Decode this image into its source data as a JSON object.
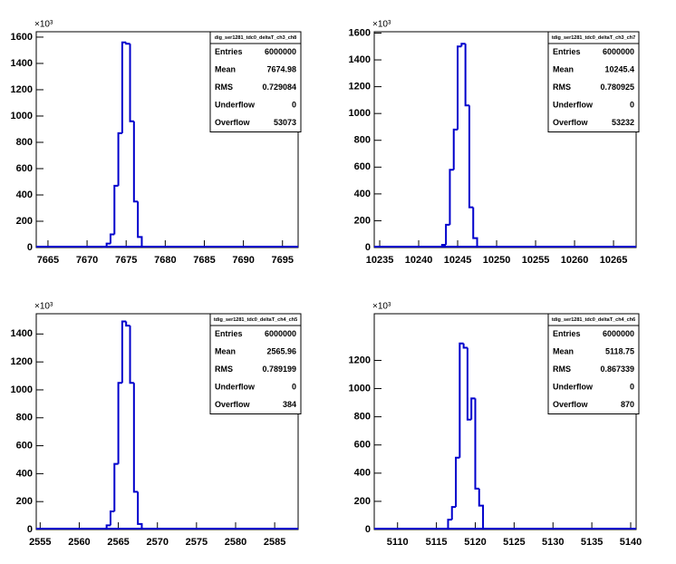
{
  "chart_data": [
    {
      "type": "histogram",
      "stats_title": "dig_ser1281_tdc0_deltaT_ch3_ch8",
      "y_multiplier": "×10³",
      "bins": [
        7672,
        7672.5,
        7673,
        7673.5,
        7674,
        7674.5,
        7675,
        7675.5,
        7676,
        7676.5,
        7677
      ],
      "values": [
        5,
        30,
        100,
        470,
        870,
        1560,
        1550,
        960,
        350,
        80
      ],
      "color": "#0000cc",
      "xlim": [
        7663.5,
        7697
      ],
      "ylim": [
        0,
        1641
      ],
      "xticks": [
        7665,
        7670,
        7675,
        7680,
        7685,
        7690,
        7695
      ],
      "yticks": [
        0,
        200,
        400,
        600,
        800,
        1000,
        1200,
        1400,
        1600
      ],
      "stats": {
        "labels": [
          "Entries",
          "Mean",
          "RMS",
          "Underflow",
          "Overflow"
        ],
        "values": [
          6000000,
          7674.98,
          0.729084,
          0,
          53073
        ]
      }
    },
    {
      "type": "histogram",
      "stats_title": "tdig_ser1281_tdc0_deltaT_ch3_ch7",
      "y_multiplier": "×10³",
      "bins": [
        10243,
        10243.5,
        10244,
        10244.5,
        10245,
        10245.5,
        10246,
        10246.5,
        10247,
        10247.5
      ],
      "values": [
        20,
        170,
        580,
        880,
        1500,
        1520,
        1060,
        300,
        70
      ],
      "color": "#0000cc",
      "xlim": [
        10234.3,
        10267.9
      ],
      "ylim": [
        0,
        1610
      ],
      "xticks": [
        10235,
        10240,
        10245,
        10250,
        10255,
        10260,
        10265
      ],
      "yticks": [
        0,
        200,
        400,
        600,
        800,
        1000,
        1200,
        1400,
        1600
      ],
      "stats": {
        "labels": [
          "Entries",
          "Mean",
          "RMS",
          "Underflow",
          "Overflow"
        ],
        "values": [
          6000000,
          10245.4,
          0.780925,
          0,
          53232
        ]
      }
    },
    {
      "type": "histogram",
      "stats_title": "tdig_ser1281_tdc0_deltaT_ch4_ch5",
      "y_multiplier": "×10³",
      "bins": [
        2563.5,
        2564,
        2564.5,
        2565,
        2565.5,
        2566,
        2566.5,
        2567,
        2567.5,
        2568
      ],
      "values": [
        30,
        130,
        470,
        1050,
        1490,
        1460,
        1050,
        270,
        40
      ],
      "color": "#0000cc",
      "xlim": [
        2554.5,
        2588
      ],
      "ylim": [
        0,
        1545
      ],
      "xticks": [
        2555,
        2560,
        2565,
        2570,
        2575,
        2580,
        2585
      ],
      "yticks": [
        0,
        200,
        400,
        600,
        800,
        1000,
        1200,
        1400
      ],
      "stats": {
        "labels": [
          "Entries",
          "Mean",
          "RMS",
          "Underflow",
          "Overflow"
        ],
        "values": [
          6000000,
          2565.96,
          0.789199,
          0,
          384
        ]
      }
    },
    {
      "type": "histogram",
      "stats_title": "tdig_ser1281_tdc0_deltaT_ch4_ch6",
      "y_multiplier": "×10³",
      "bins": [
        5116.5,
        5117,
        5117.5,
        5118,
        5118.5,
        5119,
        5119.5,
        5120,
        5120.5,
        5121
      ],
      "values": [
        70,
        160,
        510,
        1320,
        1290,
        780,
        930,
        290,
        170
      ],
      "color": "#0000cc",
      "xlim": [
        5107,
        5140.7
      ],
      "ylim": [
        0,
        1531
      ],
      "xticks": [
        5110,
        5115,
        5120,
        5125,
        5130,
        5135,
        5140
      ],
      "yticks": [
        0,
        200,
        400,
        600,
        800,
        1000,
        1200
      ],
      "stats": {
        "labels": [
          "Entries",
          "Mean",
          "RMS",
          "Underflow",
          "Overflow"
        ],
        "values": [
          6000000,
          5118.75,
          0.867339,
          0,
          870
        ]
      }
    }
  ]
}
